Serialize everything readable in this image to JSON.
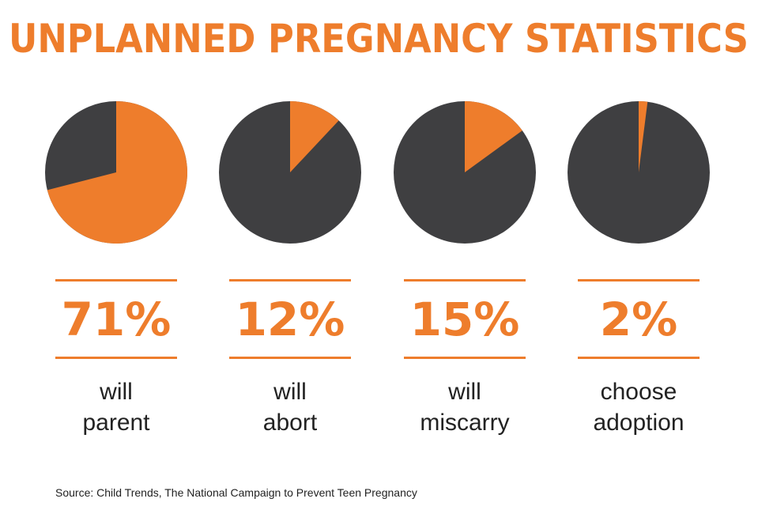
{
  "title": "UNPLANNED PREGNANCY STATISTICS",
  "source": "Source: Child Trends, The National Campaign to Prevent Teen Pregnancy",
  "chart_data": [
    {
      "type": "pie",
      "values": [
        71
      ],
      "value_labels": [
        "71%"
      ],
      "label": [
        "will",
        "parent"
      ],
      "color": "#ee7d2c",
      "rest_color": "#3f3f41"
    },
    {
      "type": "pie",
      "values": [
        12
      ],
      "value_labels": [
        "12%"
      ],
      "label": [
        "will",
        "abort"
      ],
      "color": "#ee7d2c",
      "rest_color": "#3f3f41"
    },
    {
      "type": "pie",
      "values": [
        15
      ],
      "value_labels": [
        "15%"
      ],
      "label": [
        "will",
        "miscarry"
      ],
      "color": "#ee7d2c",
      "rest_color": "#3f3f41"
    },
    {
      "type": "pie",
      "values": [
        2
      ],
      "value_labels": [
        "2%"
      ],
      "label": [
        "choose",
        "adoption"
      ],
      "color": "#ee7d2c",
      "rest_color": "#3f3f41"
    }
  ]
}
